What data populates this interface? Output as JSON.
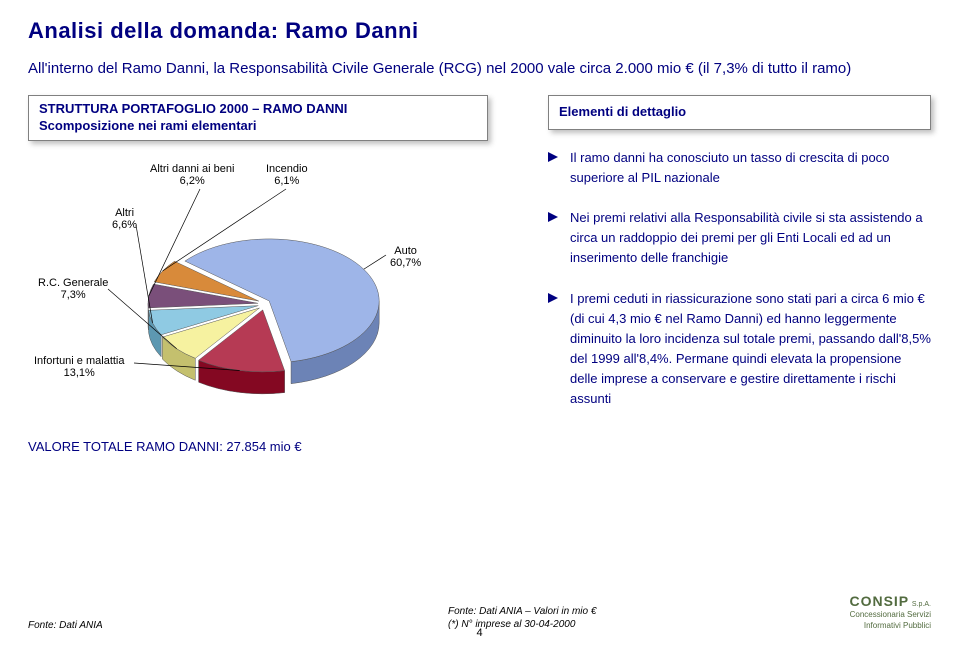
{
  "title": "Analisi della domanda: Ramo Danni",
  "intro": "All'interno del Ramo Danni, la Responsabilità Civile Generale (RCG) nel 2000 vale circa 2.000 mio € (il 7,3% di tutto il ramo)",
  "left_header_line1": "STRUTTURA PORTAFOGLIO 2000 – RAMO DANNI",
  "left_header_line2": "Scomposizione nei rami elementari",
  "right_header": "Elementi di dettaglio",
  "chart": {
    "slices": [
      {
        "key": "auto",
        "label": "Auto",
        "pct_label": "60,7%",
        "value": 60.7,
        "color": "#9eb5e8"
      },
      {
        "key": "infortuni",
        "label": "Infortuni e malattia",
        "pct_label": "13,1%",
        "value": 13.1,
        "color": "#b63a54"
      },
      {
        "key": "rcg",
        "label": "R.C. Generale",
        "pct_label": "7,3%",
        "value": 7.3,
        "color": "#f6f2a0"
      },
      {
        "key": "altri",
        "label": "Altri",
        "pct_label": "6,6%",
        "value": 6.6,
        "color": "#8fcae3"
      },
      {
        "key": "beni",
        "label": "Altri danni ai beni",
        "pct_label": "6,2%",
        "value": 6.2,
        "color": "#7a4f7a"
      },
      {
        "key": "incendio",
        "label": "Incendio",
        "pct_label": "6,1%",
        "value": 6.1,
        "color": "#d88a3a"
      }
    ],
    "background_color": "#ffffff",
    "label_fontsize": 11
  },
  "caption": "VALORE TOTALE RAMO DANNI: 27.854 mio €",
  "bullets": [
    "Il ramo danni ha conosciuto un tasso di crescita di poco superiore al PIL nazionale",
    "Nei premi relativi alla Responsabilità civile si sta assistendo a circa un raddoppio dei premi per gli Enti Locali ed ad un inserimento delle franchigie",
    "I premi ceduti in riassicurazione sono stati pari a circa 6 mio € (di cui 4,3 mio € nel Ramo Danni) ed hanno leggermente diminuito la loro incidenza sul totale premi, passando dall'8,5% del 1999 all'8,4%. Permane quindi elevata la propensione delle imprese a conservare e gestire direttamente i rischi assunti"
  ],
  "footer": {
    "left": "Fonte: Dati ANIA",
    "mid_line1": "Fonte: Dati ANIA – Valori in mio €",
    "mid_line2": "(*) N° imprese al 30-04-2000",
    "logo_main": "CONSIP",
    "logo_spa": "S.p.A.",
    "logo_sub1": "Concessionaria Servizi",
    "logo_sub2": "Informativi Pubblici"
  },
  "page_num": "4"
}
